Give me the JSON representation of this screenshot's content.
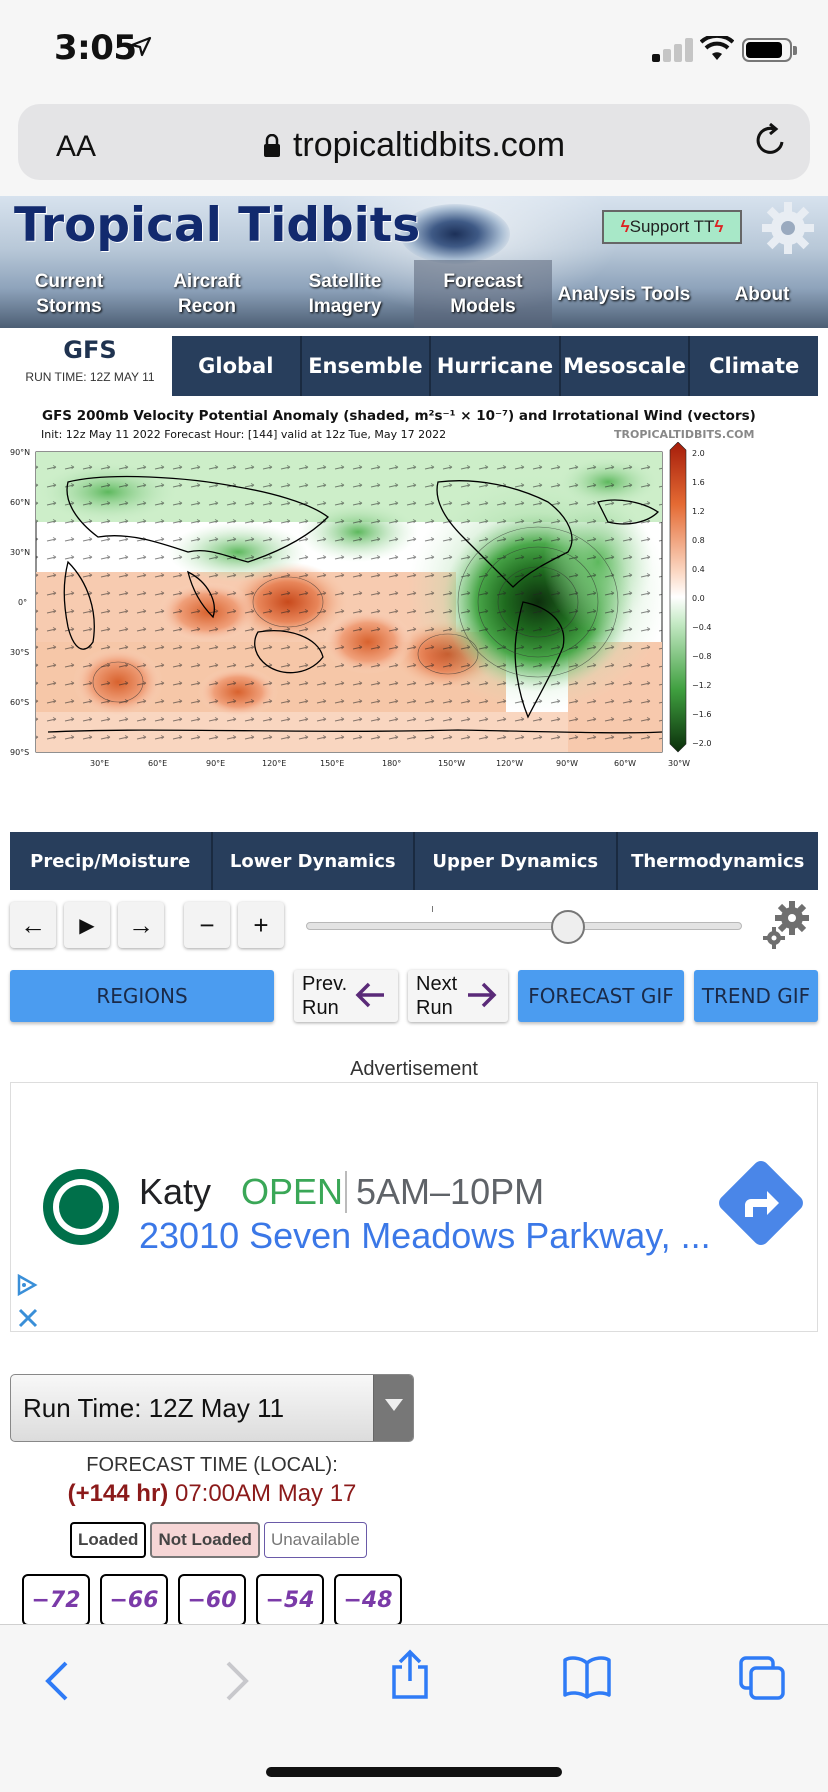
{
  "status": {
    "time": "3:05"
  },
  "browser": {
    "aa_label": "AA",
    "url": "tropicaltidbits.com"
  },
  "site": {
    "title": "Tropical Tidbits",
    "support_label": "Support TT",
    "nav": [
      {
        "line1": "Current",
        "line2": "Storms"
      },
      {
        "line1": "Aircraft",
        "line2": "Recon"
      },
      {
        "line1": "Satellite",
        "line2": "Imagery"
      },
      {
        "line1": "Forecast",
        "line2": "Models"
      },
      {
        "line1": "Analysis Tools",
        "line2": ""
      },
      {
        "line1": "About",
        "line2": ""
      }
    ]
  },
  "model": {
    "name": "GFS",
    "run_time": "RUN TIME: 12Z MAY 11",
    "tabs": [
      "Global",
      "Ensemble",
      "Hurricane",
      "Mesoscale",
      "Climate"
    ]
  },
  "figure": {
    "title": "GFS 200mb Velocity Potential Anomaly (shaded, m²s⁻¹ × 10⁻⁷) and Irrotational Wind (vectors)",
    "subtitle": "Init: 12z May 11 2022   Forecast Hour: [144]   valid at 12z Tue, May 17 2022",
    "brand": "TROPICALTIDBITS.COM",
    "lat_labels": [
      "90°N",
      "60°N",
      "30°N",
      "0°",
      "30°S",
      "60°S",
      "90°S"
    ],
    "lon_labels": [
      "30°E",
      "60°E",
      "90°E",
      "120°E",
      "150°E",
      "180°",
      "150°W",
      "120°W",
      "90°W",
      "60°W",
      "30°W"
    ],
    "colorbar_labels": [
      "2.0",
      "1.6",
      "1.2",
      "0.8",
      "0.4",
      "0.0",
      "−0.4",
      "−0.8",
      "−1.2",
      "−1.6",
      "−2.0"
    ],
    "colors": {
      "positive": "#e46a33",
      "negative": "#2f9a2f",
      "neutral": "#ffffff"
    }
  },
  "categories": [
    "Precip/Moisture",
    "Lower Dynamics",
    "Upper Dynamics",
    "Thermodynamics"
  ],
  "controls": {
    "back": "←",
    "play": "▶",
    "forward": "→",
    "minus": "−",
    "plus": "+",
    "slider_fraction": 0.6
  },
  "actions": {
    "regions": "REGIONS",
    "prev_line1": "Prev.",
    "prev_line2": "Run",
    "next_line1": "Next",
    "next_line2": "Run",
    "forecast_gif": "FORECAST GIF",
    "trend_gif": "TREND GIF"
  },
  "ad": {
    "label": "Advertisement",
    "name": "Katy",
    "status": "OPEN",
    "hours": "5AM–10PM",
    "address": "23010 Seven Meadows Parkway, ..."
  },
  "run_select": {
    "label": "Run Time: 12Z May 11"
  },
  "forecast_time": {
    "label": "FORECAST TIME (LOCAL):",
    "hours": "(+144 hr)",
    "time": "07:00AM May 17"
  },
  "legend": {
    "loaded": "Loaded",
    "not_loaded": "Not Loaded",
    "unavailable": "Unavailable"
  },
  "hour_buttons": [
    "−72",
    "−66",
    "−60",
    "−54",
    "−48"
  ]
}
